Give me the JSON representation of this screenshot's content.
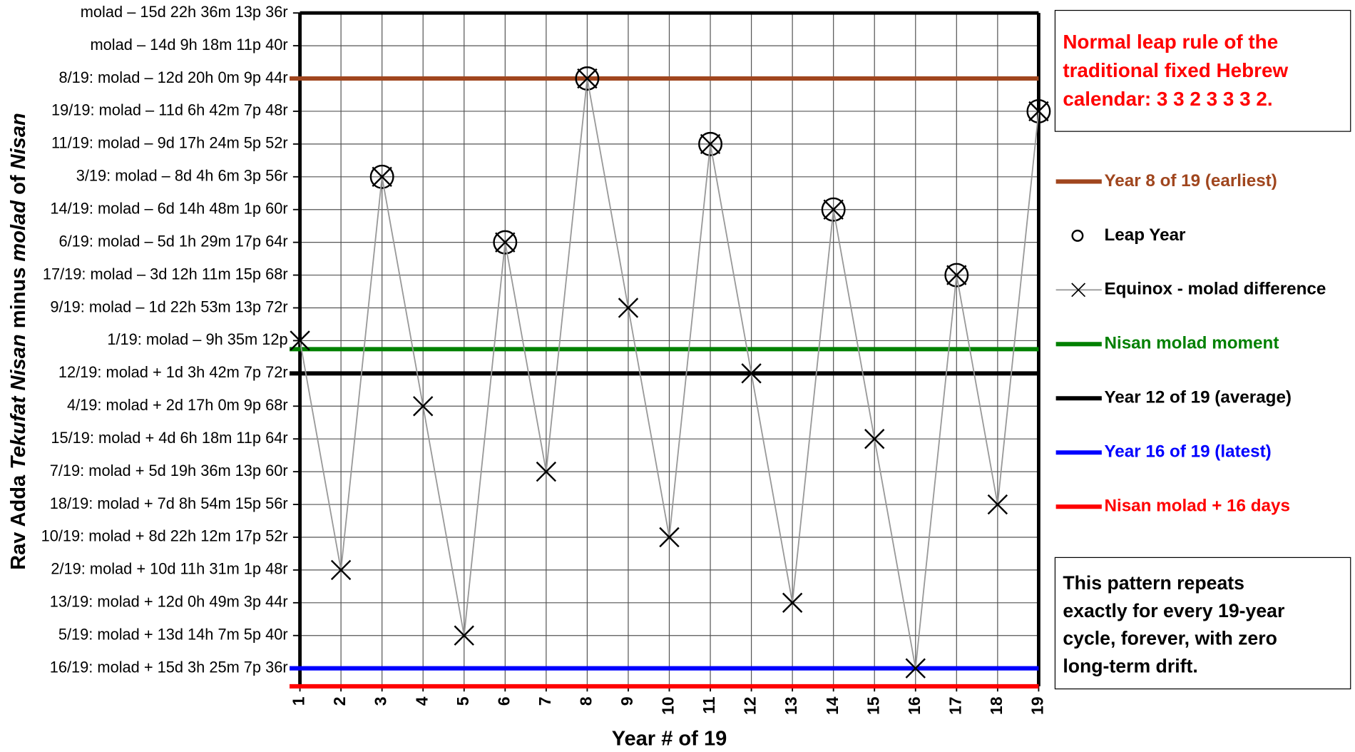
{
  "chart_data": {
    "type": "line",
    "xlabel": "Year # of 19",
    "ylabel_parts": [
      {
        "text": "Rav Adda "
      },
      {
        "text": "Tekufat Nisan",
        "italic": true
      },
      {
        "text": " minus "
      },
      {
        "text": "molad",
        "italic": true
      },
      {
        "text": " of "
      },
      {
        "text": "Nisan",
        "italic": true
      }
    ],
    "x": [
      1,
      2,
      3,
      4,
      5,
      6,
      7,
      8,
      9,
      10,
      11,
      12,
      13,
      14,
      15,
      16,
      17,
      18,
      19
    ],
    "xlim": [
      1,
      19
    ],
    "xticks": [
      1,
      2,
      3,
      4,
      5,
      6,
      7,
      8,
      9,
      10,
      11,
      12,
      13,
      14,
      15,
      16,
      17,
      18,
      19
    ],
    "ylim": [
      -0.55,
      20
    ],
    "yticks": [
      {
        "value": 20,
        "label": "molad – 15d 22h 36m 13p 36r"
      },
      {
        "value": 19,
        "label": "molad – 14d 9h 18m 11p 40r"
      },
      {
        "value": 18,
        "label": "8/19: molad – 12d 20h 0m 9p 44r"
      },
      {
        "value": 17,
        "label": "19/19: molad – 11d 6h 42m 7p 48r"
      },
      {
        "value": 16,
        "label": "11/19: molad – 9d 17h 24m 5p 52r"
      },
      {
        "value": 15,
        "label": "3/19: molad – 8d 4h 6m 3p 56r"
      },
      {
        "value": 14,
        "label": "14/19: molad – 6d 14h 48m 1p 60r"
      },
      {
        "value": 13,
        "label": "6/19: molad – 5d 1h 29m 17p 64r"
      },
      {
        "value": 12,
        "label": "17/19: molad – 3d 12h 11m 15p 68r"
      },
      {
        "value": 11,
        "label": "9/19: molad – 1d 22h 53m 13p 72r"
      },
      {
        "value": 10,
        "label": "1/19: molad – 9h 35m 12p"
      },
      {
        "value": 9,
        "label": "12/19: molad + 1d 3h 42m 7p 72r"
      },
      {
        "value": 8,
        "label": "4/19: molad + 2d 17h 0m 9p 68r"
      },
      {
        "value": 7,
        "label": "15/19: molad + 4d 6h 18m 11p 64r"
      },
      {
        "value": 6,
        "label": "7/19: molad + 5d 19h 36m 13p 60r"
      },
      {
        "value": 5,
        "label": "18/19: molad + 7d 8h 54m 15p 56r"
      },
      {
        "value": 4,
        "label": "10/19: molad + 8d 22h 12m 17p 52r"
      },
      {
        "value": 3,
        "label": "2/19: molad + 10d 11h 31m 1p 48r"
      },
      {
        "value": 2,
        "label": "13/19: molad + 12d 0h 49m 3p 44r"
      },
      {
        "value": 1,
        "label": "5/19: molad + 13d 14h 7m 5p 40r"
      },
      {
        "value": 0,
        "label": "16/19: molad + 15d 3h 25m 7p 36r"
      }
    ],
    "grid": true,
    "series": [
      {
        "name": "Leap Year",
        "marker": "circle",
        "color": "#000000",
        "values": [
          null,
          null,
          15,
          null,
          null,
          13,
          null,
          18,
          null,
          null,
          16,
          null,
          null,
          14,
          null,
          null,
          12,
          null,
          17
        ]
      },
      {
        "name": "Equinox - molad difference",
        "marker": "x",
        "color": "#000000",
        "line_color": "#999999",
        "values": [
          10,
          3,
          15,
          8,
          1,
          13,
          6,
          18,
          11,
          4,
          16,
          9,
          2,
          14,
          7,
          0,
          12,
          5,
          17
        ]
      }
    ],
    "reference_lines": [
      {
        "name": "Year 8 of 19 (earliest)",
        "color": "#a0461e",
        "value": 18
      },
      {
        "name": "Nisan molad moment",
        "color": "#008000",
        "value": 9.74
      },
      {
        "name": "Year 12 of 19 (average)",
        "color": "#000000",
        "value": 9
      },
      {
        "name": "Year 16 of 19 (latest)",
        "color": "#0000ff",
        "value": 0
      },
      {
        "name": "Nisan molad + 16 days",
        "color": "#ff0000",
        "value": -0.55
      }
    ],
    "annotations": [
      {
        "color": "#ff0000",
        "lines": [
          "Normal leap rule of the",
          "traditional fixed Hebrew",
          "calendar: 3 3 2 3 3 3 2."
        ]
      },
      {
        "color": "#000000",
        "lines": [
          "This pattern repeats",
          "exactly for every 19-year",
          "cycle, forever, with zero",
          "long-term drift."
        ]
      }
    ]
  }
}
